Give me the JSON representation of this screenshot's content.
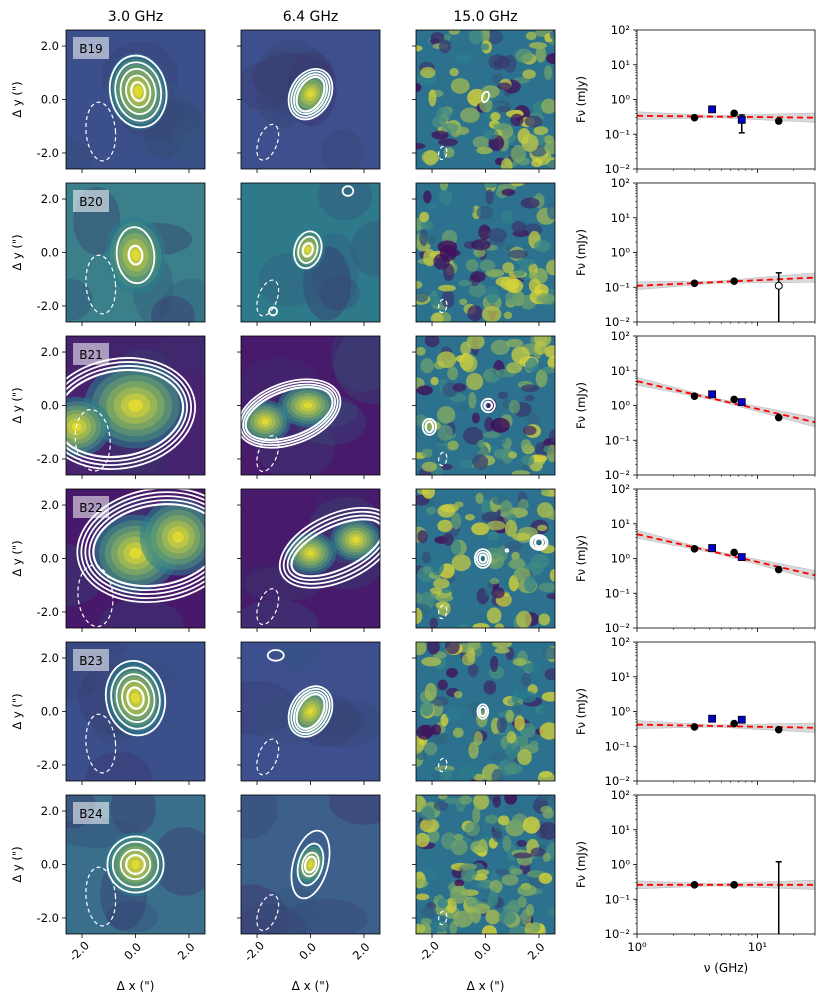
{
  "figure": {
    "column_titles": [
      "3.0 GHz",
      "6.4 GHz",
      "15.0 GHz"
    ],
    "map_xlabel": "Δ x (\")",
    "map_ylabel": "Δ y (\")",
    "map_ticks": [
      "-2.0",
      "0.0",
      "2.0"
    ],
    "sed_ylabel": "Fν (mJy)",
    "sed_xlabel": "ν (GHz)",
    "sed_xticks": [
      "10⁰",
      "10¹"
    ],
    "sed_yticks": [
      "10⁻²",
      "10⁻¹",
      "10⁰",
      "10¹",
      "10²"
    ]
  },
  "colors": {
    "map_low": "#440154",
    "map_mid": "#2a7f8e",
    "map_high": "#fde725",
    "contour": "#ffffff",
    "fit_line": "#ff0000",
    "fit_band": "#c8c8c8",
    "vla_marker": "#000000",
    "other_marker": "#0000cc"
  },
  "chart_data": [
    {
      "type": "scatter",
      "source": "B19",
      "xlim": [
        1,
        30
      ],
      "ylim": [
        0.01,
        100
      ],
      "xscale": "log",
      "yscale": "log",
      "circles": [
        {
          "x": 3.0,
          "y": 0.3
        },
        {
          "x": 6.4,
          "y": 0.4
        },
        {
          "x": 15.0,
          "y": 0.24
        }
      ],
      "squares": [
        {
          "x": 4.2,
          "y": 0.52
        },
        {
          "x": 7.4,
          "y": 0.26,
          "err": [
            0.11,
            0.36
          ]
        }
      ],
      "fit": {
        "y_at_1": 0.34,
        "y_at_30": 0.3
      }
    },
    {
      "type": "scatter",
      "source": "B20",
      "xlim": [
        1,
        30
      ],
      "ylim": [
        0.01,
        100
      ],
      "xscale": "log",
      "yscale": "log",
      "circles": [
        {
          "x": 3.0,
          "y": 0.13
        },
        {
          "x": 6.4,
          "y": 0.15
        }
      ],
      "open_circles": [
        {
          "x": 15.0,
          "y": 0.11,
          "err": [
            0.01,
            0.26
          ]
        }
      ],
      "squares": [],
      "fit": {
        "y_at_1": 0.11,
        "y_at_30": 0.19
      }
    },
    {
      "type": "scatter",
      "source": "B21",
      "xlim": [
        1,
        30
      ],
      "ylim": [
        0.01,
        100
      ],
      "xscale": "log",
      "yscale": "log",
      "circles": [
        {
          "x": 3.0,
          "y": 1.85
        },
        {
          "x": 6.4,
          "y": 1.5
        },
        {
          "x": 15.0,
          "y": 0.45
        }
      ],
      "squares": [
        {
          "x": 4.2,
          "y": 2.1
        },
        {
          "x": 7.4,
          "y": 1.25
        }
      ],
      "fit": {
        "y_at_1": 5.0,
        "y_at_30": 0.33
      }
    },
    {
      "type": "scatter",
      "source": "B22",
      "xlim": [
        1,
        30
      ],
      "ylim": [
        0.01,
        100
      ],
      "xscale": "log",
      "yscale": "log",
      "circles": [
        {
          "x": 3.0,
          "y": 1.9
        },
        {
          "x": 6.4,
          "y": 1.5
        },
        {
          "x": 15.0,
          "y": 0.48
        }
      ],
      "squares": [
        {
          "x": 4.2,
          "y": 2.0
        },
        {
          "x": 7.4,
          "y": 1.1
        }
      ],
      "fit": {
        "y_at_1": 5.0,
        "y_at_30": 0.33
      }
    },
    {
      "type": "scatter",
      "source": "B23",
      "xlim": [
        1,
        30
      ],
      "ylim": [
        0.01,
        100
      ],
      "xscale": "log",
      "yscale": "log",
      "circles": [
        {
          "x": 3.0,
          "y": 0.36
        },
        {
          "x": 6.4,
          "y": 0.45
        },
        {
          "x": 15.0,
          "y": 0.3
        }
      ],
      "squares": [
        {
          "x": 4.2,
          "y": 0.62
        },
        {
          "x": 7.4,
          "y": 0.58
        }
      ],
      "fit": {
        "y_at_1": 0.42,
        "y_at_30": 0.34
      }
    },
    {
      "type": "scatter",
      "source": "B24",
      "xlim": [
        1,
        30
      ],
      "ylim": [
        0.01,
        100
      ],
      "xscale": "log",
      "yscale": "log",
      "circles": [
        {
          "x": 3.0,
          "y": 0.26
        },
        {
          "x": 6.4,
          "y": 0.26
        }
      ],
      "open_circles": [],
      "errbars": [
        {
          "x": 15.0,
          "low": 0.01,
          "high": 1.2
        }
      ],
      "squares": [],
      "fit": {
        "y_at_1": 0.26,
        "y_at_30": 0.26
      }
    }
  ]
}
